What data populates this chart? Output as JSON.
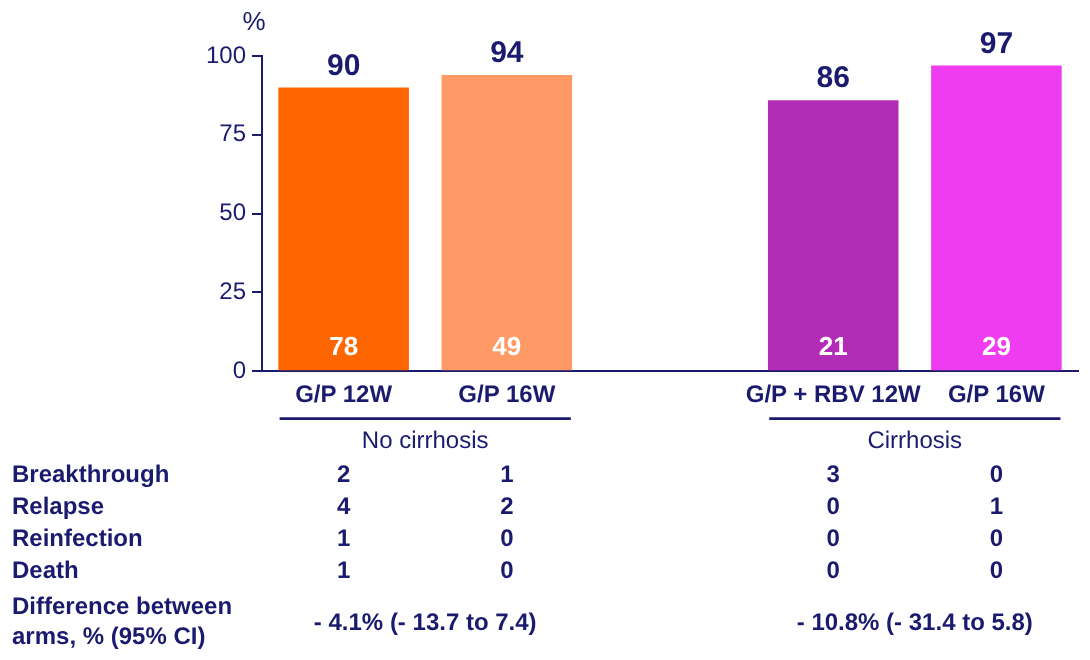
{
  "chart_data": {
    "type": "bar",
    "ylabel": "%",
    "categories": [
      "G/P 12W",
      "G/P 16W",
      null,
      "G/P + RBV 12W",
      "G/P 16W"
    ],
    "values": [
      90,
      94,
      null,
      86,
      97
    ],
    "colors": [
      "#ff6600",
      "#ff9966",
      "#ffffff",
      "#b22cb6",
      "#f03cf0"
    ],
    "ylim": [
      0,
      100
    ],
    "yticks": [
      0,
      25,
      50,
      75,
      100
    ],
    "grid": false,
    "legend": false,
    "data_labels": true,
    "annotations": [
      "78",
      "49",
      "21",
      "29",
      "No cirrhosis",
      "Cirrhosis",
      "Breakthrough",
      "2",
      "1",
      "3",
      "0",
      "Relapse",
      "4",
      "2",
      "0",
      "1",
      "Reinfection",
      "1",
      "0",
      "0",
      "0",
      "Death",
      "1",
      "0",
      "0",
      "0",
      "Difference between arms, % (95% CI)",
      "- 4.1% (- 13.7 to 7.4)",
      "- 10.8% (- 31.4 to 5.8)"
    ]
  }
}
